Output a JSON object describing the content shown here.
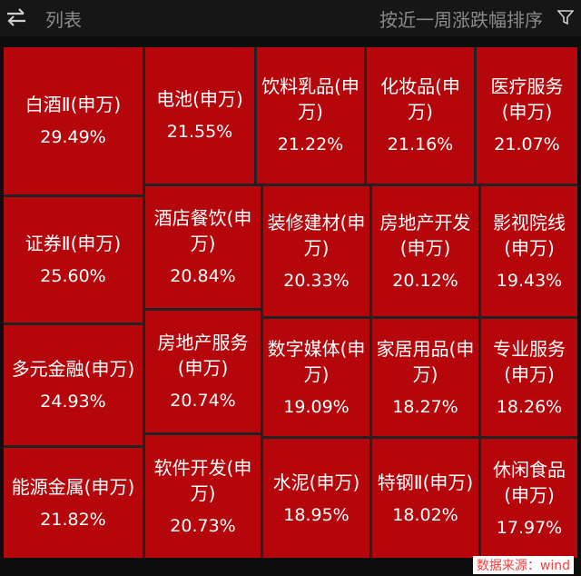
{
  "header": {
    "title": "列表",
    "sort_label": "按近一周涨跌幅排序",
    "swap_icon": "swap-arrows-icon",
    "filter_icon": "filter-icon"
  },
  "tiles": [
    {
      "name": "白酒Ⅱ(申万)",
      "pct": "29.49%"
    },
    {
      "name": "电池(申万)",
      "pct": "21.55%"
    },
    {
      "name": "饮料乳品(申万)",
      "pct": "21.22%"
    },
    {
      "name": "化妆品(申万)",
      "pct": "21.16%"
    },
    {
      "name": "医疗服务(申万)",
      "pct": "21.07%"
    },
    {
      "name": "证券Ⅱ(申万)",
      "pct": "25.60%"
    },
    {
      "name": "酒店餐饮(申万)",
      "pct": "20.84%"
    },
    {
      "name": "装修建材(申万)",
      "pct": "20.33%"
    },
    {
      "name": "房地产开发(申万)",
      "pct": "20.12%"
    },
    {
      "name": "影视院线(申万)",
      "pct": "19.43%"
    },
    {
      "name": "多元金融(申万)",
      "pct": "24.93%"
    },
    {
      "name": "房地产服务(申万)",
      "pct": "20.74%"
    },
    {
      "name": "数字媒体(申万)",
      "pct": "19.09%"
    },
    {
      "name": "家居用品(申万)",
      "pct": "18.27%"
    },
    {
      "name": "专业服务(申万)",
      "pct": "18.26%"
    },
    {
      "name": "能源金属(申万)",
      "pct": "21.82%"
    },
    {
      "name": "软件开发(申万)",
      "pct": "20.73%"
    },
    {
      "name": "水泥(申万)",
      "pct": "18.95%"
    },
    {
      "name": "特钢Ⅱ(申万)",
      "pct": "18.02%"
    },
    {
      "name": "休闲食品(申万)",
      "pct": "17.97%"
    }
  ],
  "source": "数据来源：wind",
  "colors": {
    "tile": "#b5070b",
    "background": "#0d0d0d",
    "source_text": "#ff3b3b"
  }
}
